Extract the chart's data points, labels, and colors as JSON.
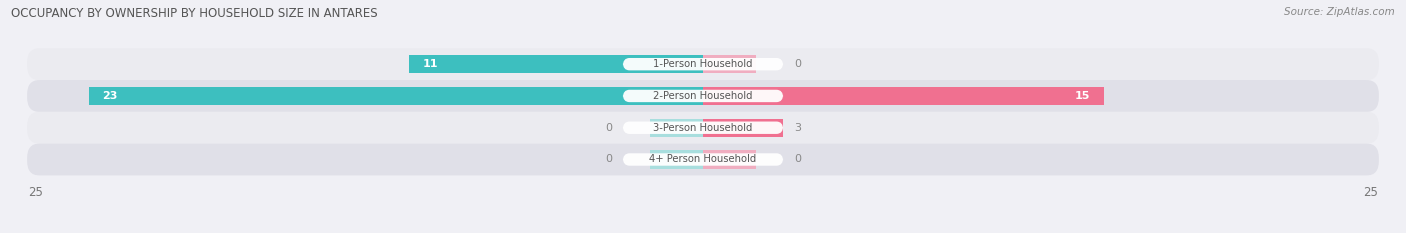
{
  "title": "OCCUPANCY BY OWNERSHIP BY HOUSEHOLD SIZE IN ANTARES",
  "source": "Source: ZipAtlas.com",
  "categories": [
    "1-Person Household",
    "2-Person Household",
    "3-Person Household",
    "4+ Person Household"
  ],
  "owner_values": [
    11,
    23,
    0,
    0
  ],
  "renter_values": [
    0,
    15,
    3,
    0
  ],
  "owner_color": "#3dbfbf",
  "owner_color_light": "#a8dede",
  "renter_color": "#f07090",
  "renter_color_light": "#f0adc0",
  "axis_limit": 25,
  "figsize": [
    14.06,
    2.33
  ],
  "dpi": 100,
  "bar_height": 0.58,
  "row_bg_even": "#ebebf0",
  "row_bg_odd": "#e0e0e8",
  "fig_bg": "#f0f0f5",
  "center_label_bg": "#ffffff",
  "title_color": "#555555",
  "source_color": "#888888",
  "value_label_outside_color": "#888888",
  "center_label_color": "#555555",
  "stub_size": 2.0
}
